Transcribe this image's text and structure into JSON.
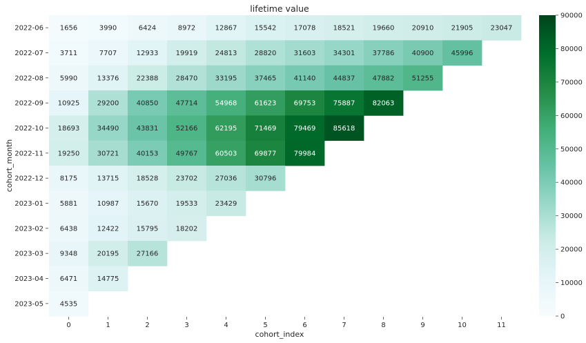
{
  "chart_data": {
    "type": "heatmap",
    "title": "lifetime value",
    "xlabel": "cohort_index",
    "ylabel": "cohort_month",
    "x": [
      "0",
      "1",
      "2",
      "3",
      "4",
      "5",
      "6",
      "7",
      "8",
      "9",
      "10",
      "11"
    ],
    "y": [
      "2022-06",
      "2022-07",
      "2022-08",
      "2022-09",
      "2022-10",
      "2022-11",
      "2022-12",
      "2023-01",
      "2023-02",
      "2023-03",
      "2023-04",
      "2023-05"
    ],
    "values": [
      [
        1656,
        3990,
        6424,
        8972,
        12867,
        15542,
        17078,
        18521,
        19660,
        20910,
        21905,
        23047
      ],
      [
        3711,
        7707,
        12933,
        19919,
        24813,
        28820,
        31603,
        34301,
        37786,
        40900,
        45996,
        null
      ],
      [
        5990,
        13376,
        22388,
        28470,
        33195,
        37465,
        41140,
        44837,
        47882,
        51255,
        null,
        null
      ],
      [
        10925,
        29200,
        40850,
        47714,
        54968,
        61623,
        69753,
        75887,
        82063,
        null,
        null,
        null
      ],
      [
        18693,
        34490,
        43831,
        52166,
        62195,
        71469,
        79469,
        85618,
        null,
        null,
        null,
        null
      ],
      [
        19250,
        30721,
        40153,
        49767,
        60503,
        69877,
        79984,
        null,
        null,
        null,
        null,
        null
      ],
      [
        8175,
        13715,
        18528,
        23702,
        27036,
        30796,
        null,
        null,
        null,
        null,
        null,
        null
      ],
      [
        5881,
        10987,
        15670,
        19533,
        23429,
        null,
        null,
        null,
        null,
        null,
        null,
        null
      ],
      [
        6438,
        12422,
        15795,
        18202,
        null,
        null,
        null,
        null,
        null,
        null,
        null,
        null
      ],
      [
        9348,
        20195,
        27166,
        null,
        null,
        null,
        null,
        null,
        null,
        null,
        null,
        null
      ],
      [
        6471,
        14775,
        null,
        null,
        null,
        null,
        null,
        null,
        null,
        null,
        null,
        null
      ],
      [
        4535,
        null,
        null,
        null,
        null,
        null,
        null,
        null,
        null,
        null,
        null,
        null
      ]
    ],
    "colorbar": {
      "min": 0,
      "max": 90000,
      "ticks": [
        0,
        10000,
        20000,
        30000,
        40000,
        50000,
        60000,
        70000,
        80000,
        90000
      ],
      "colormap": "BuGn",
      "colors": [
        "#f7fcfd",
        "#e5f5f9",
        "#ccece6",
        "#99d8c9",
        "#66c2a4",
        "#41ae76",
        "#238b45",
        "#006d2c",
        "#00441b"
      ]
    },
    "annotations": true
  }
}
